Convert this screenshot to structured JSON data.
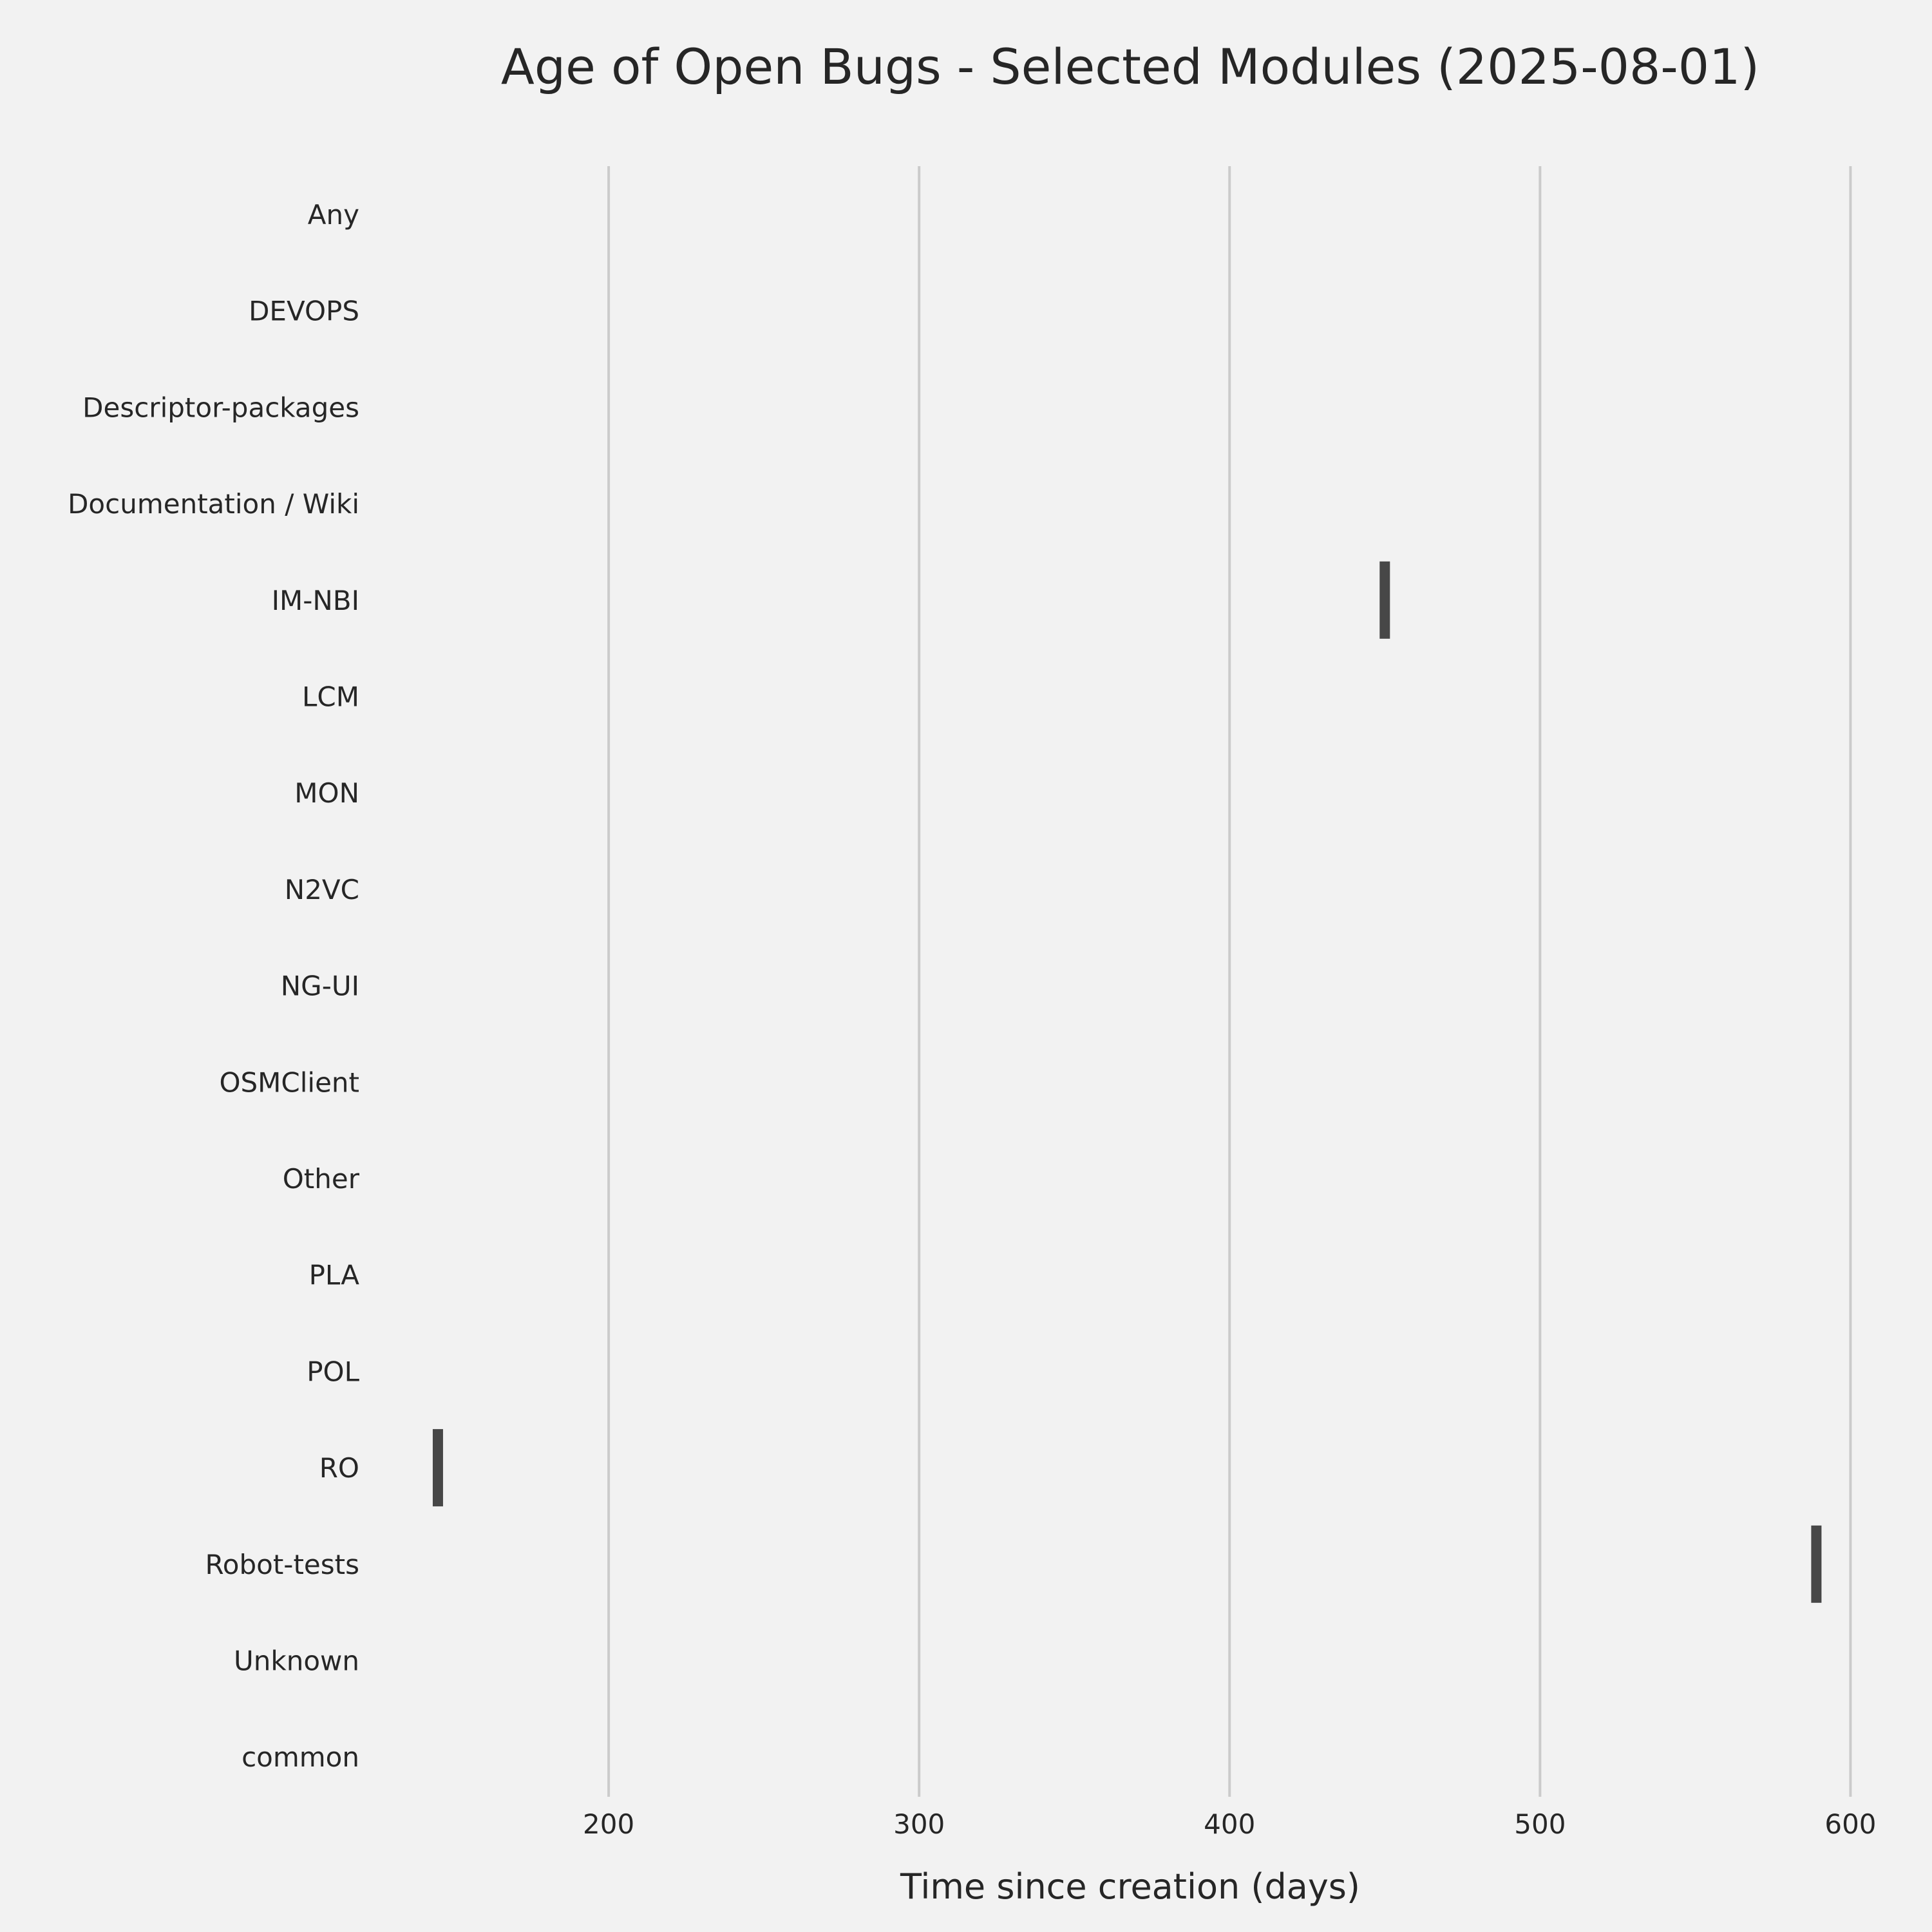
{
  "chart_data": {
    "type": "scatter",
    "title": "Age of Open Bugs - Selected Modules (2025-08-01)",
    "xlabel": "Time since creation (days)",
    "ylabel": "",
    "xlim": [
      128,
      608
    ],
    "x_ticks": [
      200,
      300,
      400,
      500,
      600
    ],
    "grid": "vertical",
    "categories": [
      "Any",
      "DEVOPS",
      "Descriptor-packages",
      "Documentation / Wiki",
      "IM-NBI",
      "LCM",
      "MON",
      "N2VC",
      "NG-UI",
      "OSMClient",
      "Other",
      "PLA",
      "POL",
      "RO",
      "Robot-tests",
      "Unknown",
      "common"
    ],
    "points": [
      {
        "category": "IM-NBI",
        "x": 450
      },
      {
        "category": "RO",
        "x": 145
      },
      {
        "category": "Robot-tests",
        "x": 589
      }
    ],
    "mark_color": "#474747"
  }
}
